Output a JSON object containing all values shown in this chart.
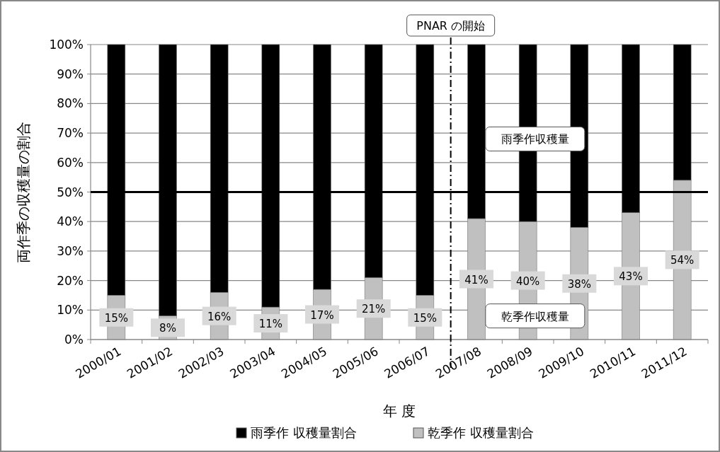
{
  "chart_data": {
    "type": "bar",
    "stacked": true,
    "xlabel": "年 度",
    "ylabel": "両作季の収穫量の割合",
    "categories": [
      "2000/01",
      "2001/02",
      "2002/03",
      "2003/04",
      "2004/05",
      "2005/06",
      "2006/07",
      "2007/08",
      "2008/09",
      "2009/10",
      "2010/11",
      "2011/12"
    ],
    "series": [
      {
        "name": "乾季作 収穫量割合",
        "color": "#c0c0c0",
        "values": [
          15,
          8,
          16,
          11,
          17,
          21,
          15,
          41,
          40,
          38,
          43,
          54
        ],
        "value_labels": [
          "15%",
          "8%",
          "16%",
          "11%",
          "17%",
          "21%",
          "15%",
          "41%",
          "40%",
          "38%",
          "43%",
          "54%"
        ]
      },
      {
        "name": "雨季作 収穫量割合",
        "color": "#000000",
        "values": [
          85,
          92,
          84,
          89,
          83,
          79,
          85,
          59,
          60,
          62,
          57,
          46
        ]
      }
    ],
    "ylim": [
      0,
      100
    ],
    "yticks": [
      {
        "value": 0,
        "label": "0%"
      },
      {
        "value": 10,
        "label": "10%"
      },
      {
        "value": 20,
        "label": "20%"
      },
      {
        "value": 30,
        "label": "30%"
      },
      {
        "value": 40,
        "label": "40%"
      },
      {
        "value": 50,
        "label": "50%"
      },
      {
        "value": 60,
        "label": "60%"
      },
      {
        "value": 70,
        "label": "70%"
      },
      {
        "value": 80,
        "label": "80%"
      },
      {
        "value": 90,
        "label": "90%"
      },
      {
        "value": 100,
        "label": "100%"
      }
    ],
    "grid": "y",
    "legend": "bottom",
    "ref_lines": [
      {
        "axis": "y",
        "value": 50,
        "color": "#000000",
        "line_style": "solid"
      },
      {
        "axis": "x",
        "value": "2007/08",
        "label": "PNAR の開始",
        "color": "#000000",
        "line_style": "dashed"
      }
    ],
    "annotations": [
      "雨季作収穫量",
      "乾季作収穫量"
    ]
  }
}
